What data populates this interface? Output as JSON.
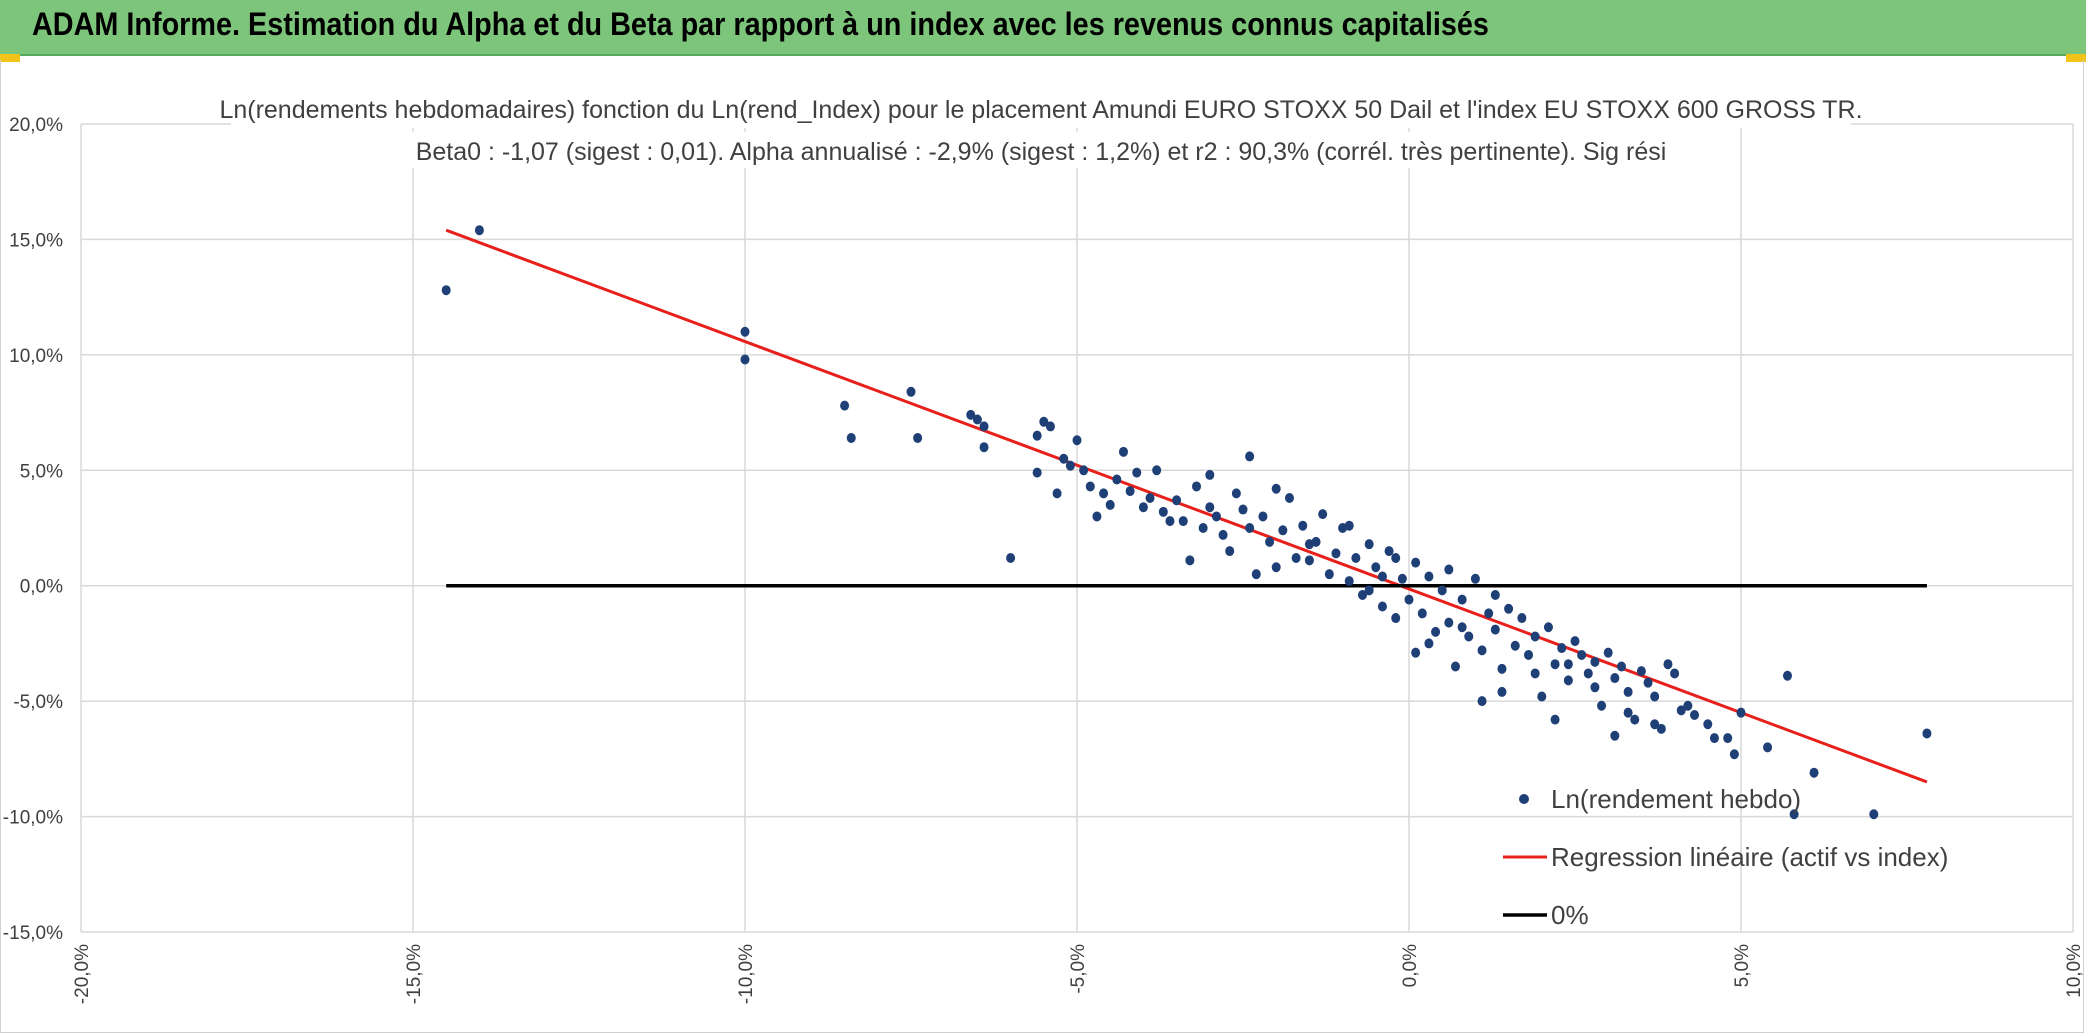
{
  "header": {
    "title": "ADAM Informe. Estimation du Alpha et du Beta par rapport à un index avec les revenus connus capitalisés",
    "background": "#7dc57a",
    "corner_color": "#f2c318"
  },
  "chart_data": {
    "type": "scatter",
    "title_line1": "Ln(rendements hebdomadaires) fonction du Ln(rend_Index) pour le placement Amundi EURO STOXX 50 Dail et l'index EU STOXX 600 GROSS TR.",
    "title_line2": "Beta0 : -1,07 (sigest : 0,01). Alpha annualisé : -2,9% (sigest : 1,2%) et r2 : 90,3% (corrél. très pertinente). Sig rési",
    "xlim": [
      -0.2,
      0.1
    ],
    "ylim": [
      -0.15,
      0.2
    ],
    "x_ticks": [
      -0.2,
      -0.15,
      -0.1,
      -0.05,
      0.0,
      0.05,
      0.1
    ],
    "x_tick_labels": [
      "-20,0%",
      "-15,0%",
      "-10,0%",
      "-5,0%",
      "0,0%",
      "5,0%",
      "10,0%"
    ],
    "y_ticks": [
      0.2,
      0.15,
      0.1,
      0.05,
      0.0,
      -0.05,
      -0.1,
      -0.15
    ],
    "y_tick_labels": [
      "20,0%",
      "15,0%",
      "10,0%",
      "5,0%",
      "0,0%",
      "-5,0%",
      "-10,0%",
      "-15,0%"
    ],
    "grid": true,
    "legend_position": "bottom-right",
    "series": [
      {
        "name": "Ln(rendement hebdo)",
        "kind": "scatter",
        "color": "#1f3f77",
        "points": [
          [
            -0.145,
            0.128
          ],
          [
            -0.14,
            0.154
          ],
          [
            -0.1,
            0.098
          ],
          [
            -0.1,
            0.11
          ],
          [
            -0.085,
            0.078
          ],
          [
            -0.084,
            0.064
          ],
          [
            -0.075,
            0.084
          ],
          [
            -0.074,
            0.064
          ],
          [
            -0.066,
            0.074
          ],
          [
            -0.065,
            0.072
          ],
          [
            -0.064,
            0.069
          ],
          [
            -0.064,
            0.06
          ],
          [
            -0.06,
            0.012
          ],
          [
            -0.056,
            0.065
          ],
          [
            -0.056,
            0.049
          ],
          [
            -0.055,
            0.071
          ],
          [
            -0.054,
            0.069
          ],
          [
            -0.053,
            0.04
          ],
          [
            -0.052,
            0.055
          ],
          [
            -0.051,
            0.052
          ],
          [
            -0.05,
            0.063
          ],
          [
            -0.049,
            0.05
          ],
          [
            -0.048,
            0.043
          ],
          [
            -0.047,
            0.03
          ],
          [
            -0.046,
            0.04
          ],
          [
            -0.045,
            0.035
          ],
          [
            -0.044,
            0.046
          ],
          [
            -0.043,
            0.058
          ],
          [
            -0.042,
            0.041
          ],
          [
            -0.041,
            0.049
          ],
          [
            -0.04,
            0.034
          ],
          [
            -0.039,
            0.038
          ],
          [
            -0.038,
            0.05
          ],
          [
            -0.037,
            0.032
          ],
          [
            -0.036,
            0.028
          ],
          [
            -0.035,
            0.037
          ],
          [
            -0.034,
            0.028
          ],
          [
            -0.033,
            0.011
          ],
          [
            -0.032,
            0.043
          ],
          [
            -0.031,
            0.025
          ],
          [
            -0.03,
            0.034
          ],
          [
            -0.03,
            0.048
          ],
          [
            -0.029,
            0.03
          ],
          [
            -0.028,
            0.022
          ],
          [
            -0.027,
            0.015
          ],
          [
            -0.026,
            0.04
          ],
          [
            -0.025,
            0.033
          ],
          [
            -0.024,
            0.025
          ],
          [
            -0.024,
            0.056
          ],
          [
            -0.023,
            0.005
          ],
          [
            -0.022,
            0.03
          ],
          [
            -0.021,
            0.019
          ],
          [
            -0.02,
            0.042
          ],
          [
            -0.019,
            0.024
          ],
          [
            -0.018,
            0.038
          ],
          [
            -0.017,
            0.012
          ],
          [
            -0.016,
            0.026
          ],
          [
            -0.015,
            0.011
          ],
          [
            -0.014,
            0.019
          ],
          [
            -0.013,
            0.031
          ],
          [
            -0.012,
            0.005
          ],
          [
            -0.011,
            0.014
          ],
          [
            -0.01,
            0.025
          ],
          [
            -0.009,
            0.002
          ],
          [
            -0.008,
            0.012
          ],
          [
            -0.007,
            -0.004
          ],
          [
            -0.006,
            0.018
          ],
          [
            -0.005,
            0.008
          ],
          [
            -0.004,
            -0.009
          ],
          [
            -0.003,
            0.015
          ],
          [
            -0.002,
            -0.014
          ],
          [
            -0.001,
            0.003
          ],
          [
            0.0,
            -0.006
          ],
          [
            0.001,
            0.01
          ],
          [
            0.002,
            -0.012
          ],
          [
            0.003,
            0.004
          ],
          [
            0.004,
            -0.02
          ],
          [
            0.005,
            -0.002
          ],
          [
            0.006,
            -0.016
          ],
          [
            0.007,
            -0.035
          ],
          [
            0.008,
            -0.006
          ],
          [
            0.009,
            -0.022
          ],
          [
            0.01,
            0.003
          ],
          [
            0.011,
            -0.028
          ],
          [
            0.012,
            -0.012
          ],
          [
            0.013,
            -0.019
          ],
          [
            0.014,
            -0.036
          ],
          [
            0.015,
            -0.01
          ],
          [
            0.011,
            -0.05
          ],
          [
            0.016,
            -0.026
          ],
          [
            0.017,
            -0.014
          ],
          [
            0.018,
            -0.03
          ],
          [
            0.019,
            -0.022
          ],
          [
            0.02,
            -0.048
          ],
          [
            0.021,
            -0.018
          ],
          [
            0.022,
            -0.034
          ],
          [
            0.023,
            -0.027
          ],
          [
            0.024,
            -0.041
          ],
          [
            0.025,
            -0.024
          ],
          [
            0.026,
            -0.03
          ],
          [
            0.027,
            -0.038
          ],
          [
            0.028,
            -0.033
          ],
          [
            0.029,
            -0.052
          ],
          [
            0.03,
            -0.029
          ],
          [
            0.031,
            -0.04
          ],
          [
            0.032,
            -0.035
          ],
          [
            0.033,
            -0.046
          ],
          [
            0.034,
            -0.058
          ],
          [
            0.035,
            -0.037
          ],
          [
            0.036,
            -0.042
          ],
          [
            0.037,
            -0.048
          ],
          [
            0.038,
            -0.062
          ],
          [
            0.039,
            -0.034
          ],
          [
            0.04,
            -0.038
          ],
          [
            0.042,
            -0.052
          ],
          [
            0.043,
            -0.056
          ],
          [
            0.045,
            -0.06
          ],
          [
            0.046,
            -0.066
          ],
          [
            0.048,
            -0.066
          ],
          [
            0.049,
            -0.073
          ],
          [
            0.05,
            -0.055
          ],
          [
            0.054,
            -0.07
          ],
          [
            0.057,
            -0.039
          ],
          [
            0.058,
            -0.099
          ],
          [
            0.061,
            -0.081
          ],
          [
            0.07,
            -0.099
          ],
          [
            0.078,
            -0.064
          ],
          [
            0.031,
            -0.065
          ],
          [
            0.028,
            -0.044
          ],
          [
            0.022,
            -0.058
          ],
          [
            0.008,
            -0.018
          ],
          [
            -0.002,
            0.012
          ],
          [
            0.003,
            -0.025
          ],
          [
            -0.006,
            -0.002
          ],
          [
            0.014,
            -0.046
          ],
          [
            0.019,
            -0.038
          ],
          [
            0.024,
            -0.034
          ],
          [
            0.013,
            -0.004
          ],
          [
            -0.009,
            0.026
          ],
          [
            -0.015,
            0.018
          ],
          [
            -0.02,
            0.008
          ],
          [
            0.006,
            0.007
          ],
          [
            0.001,
            -0.029
          ],
          [
            -0.004,
            0.004
          ],
          [
            0.033,
            -0.055
          ],
          [
            0.037,
            -0.06
          ],
          [
            0.041,
            -0.054
          ]
        ]
      },
      {
        "name": "Regression linéaire (actif vs index)",
        "kind": "line",
        "color": "#e8201c",
        "points": [
          [
            -0.145,
            0.154
          ],
          [
            0.078,
            -0.085
          ]
        ]
      },
      {
        "name": "0%",
        "kind": "line",
        "color": "#000000",
        "points": [
          [
            -0.145,
            0.0
          ],
          [
            0.078,
            0.0
          ]
        ]
      }
    ]
  }
}
